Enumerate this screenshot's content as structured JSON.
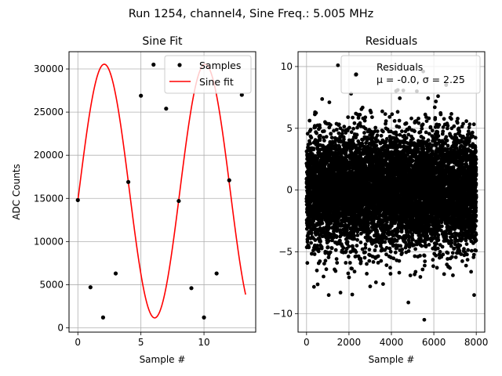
{
  "figure_title": "Run 1254, channel4, Sine Freq.: 5.005 MHz",
  "chart_data": [
    {
      "type": "line",
      "title": "Sine Fit",
      "xlabel": "Sample #",
      "ylabel": "ADC Counts",
      "xlim": [
        -0.7,
        14.1
      ],
      "ylim": [
        -500,
        32000
      ],
      "xticks": [
        0,
        5,
        10
      ],
      "yticks": [
        0,
        5000,
        10000,
        15000,
        20000,
        25000,
        30000
      ],
      "grid": true,
      "legend": "top-right",
      "series": [
        {
          "name": "Samples",
          "style": "points",
          "color": "#000000",
          "x": [
            0,
            1,
            2,
            3,
            4,
            5,
            6,
            7,
            8,
            9,
            10,
            11,
            12,
            13
          ],
          "y": [
            14800,
            4700,
            1200,
            6300,
            16900,
            26900,
            30500,
            25400,
            14700,
            4600,
            1200,
            6300,
            17100,
            27000
          ]
        },
        {
          "name": "Sine fit",
          "style": "line",
          "color": "#ff0000",
          "model": {
            "offset": 15850,
            "amplitude": 14700,
            "period_samples": 7.993,
            "phase_deg": -4.3
          },
          "x_range": [
            0,
            13.3
          ]
        }
      ]
    },
    {
      "type": "scatter",
      "title": "Residuals",
      "xlabel": "",
      "ylabel": "",
      "xlim": [
        -400,
        8400
      ],
      "ylim": [
        -11.5,
        11.2
      ],
      "xticks": [
        0,
        2000,
        4000,
        6000,
        8000
      ],
      "yticks": [
        -10,
        -5,
        0,
        5,
        10
      ],
      "grid": true,
      "legend": "top-right",
      "series": [
        {
          "name": "Residuals",
          "stats_label": "μ = -0.0, σ = 2.25",
          "color": "#000000",
          "n_points": 8000,
          "x_range": [
            0,
            7999
          ],
          "mean": 0.0,
          "std": 2.25,
          "outliers": [
            [
              1480,
              10.1
            ],
            [
              2300,
              9.3
            ],
            [
              5500,
              9.6
            ],
            [
              5550,
              -10.5
            ],
            [
              4800,
              -9.1
            ],
            [
              7900,
              -8.5
            ],
            [
              1600,
              -8.3
            ],
            [
              4300,
              8.1
            ],
            [
              5200,
              8.0
            ],
            [
              3000,
              -7.8
            ],
            [
              6200,
              7.6
            ],
            [
              800,
              -7.0
            ],
            [
              2100,
              7.8
            ],
            [
              6900,
              -6.9
            ],
            [
              400,
              6.3
            ]
          ]
        }
      ]
    }
  ]
}
